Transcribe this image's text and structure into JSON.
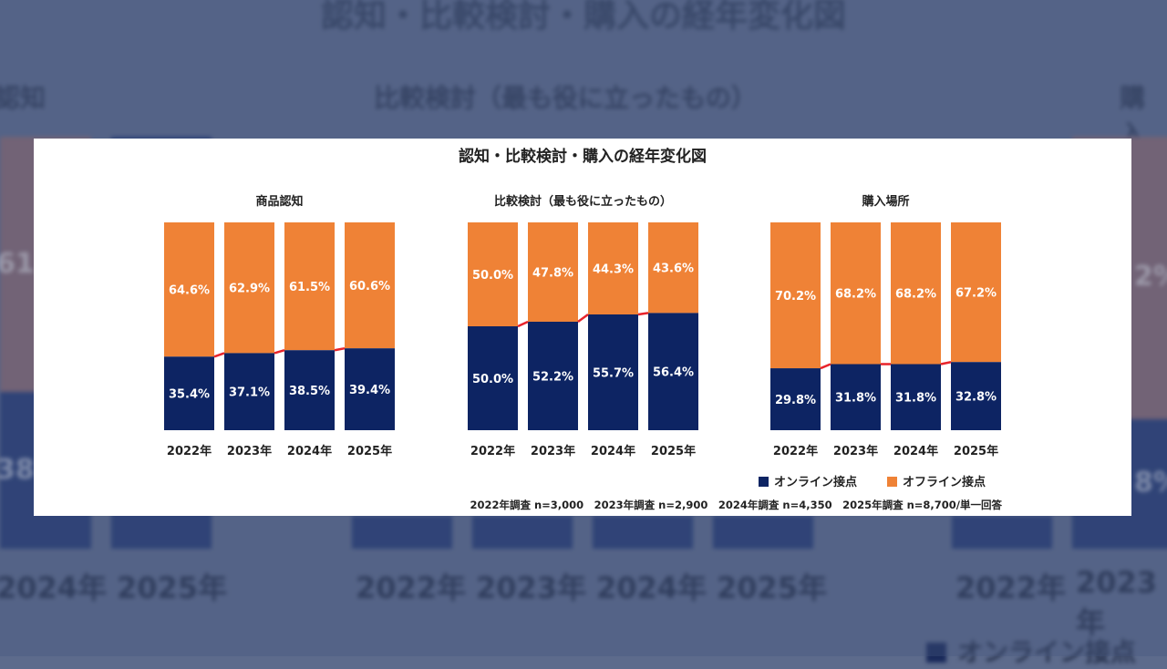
{
  "chart_data": {
    "type": "bar",
    "stacked": true,
    "title": "認知・比較検討・購入の経年変化図",
    "colors": {
      "online": "#0d2463",
      "offline": "#ef8236",
      "connector": "#e8232a"
    },
    "legend": {
      "position": "bottom-right",
      "online": "オンライン接点",
      "offline": "オフライン接点"
    },
    "categories": [
      "2022年",
      "2023年",
      "2024年",
      "2025年"
    ],
    "panels": [
      {
        "title": "商品認知",
        "online": [
          35.4,
          37.1,
          38.5,
          39.4
        ],
        "offline": [
          64.6,
          62.9,
          61.5,
          60.6
        ],
        "online_labels": [
          "35.4%",
          "37.1%",
          "38.5%",
          "39.4%"
        ],
        "offline_labels": [
          "64.6%",
          "62.9%",
          "61.5%",
          "60.6%"
        ]
      },
      {
        "title": "比較検討（最も役に立ったもの）",
        "online": [
          50.0,
          52.2,
          55.7,
          56.4
        ],
        "offline": [
          50.0,
          47.8,
          44.3,
          43.6
        ],
        "online_labels": [
          "50.0%",
          "52.2%",
          "55.7%",
          "56.4%"
        ],
        "offline_labels": [
          "50.0%",
          "47.8%",
          "44.3%",
          "43.6%"
        ]
      },
      {
        "title": "購入場所",
        "online": [
          29.8,
          31.8,
          31.8,
          32.8
        ],
        "offline": [
          70.2,
          68.2,
          68.2,
          67.2
        ],
        "online_labels": [
          "29.8%",
          "31.8%",
          "31.8%",
          "32.8%"
        ],
        "offline_labels": [
          "70.2%",
          "68.2%",
          "68.2%",
          "67.2%"
        ]
      }
    ],
    "ylim": [
      0,
      100
    ],
    "note": "2022年調査 n=3,000　2023年調査 n=2,900　2024年調査 n=4,350　2025年調査 n=8,700/単一回答"
  }
}
